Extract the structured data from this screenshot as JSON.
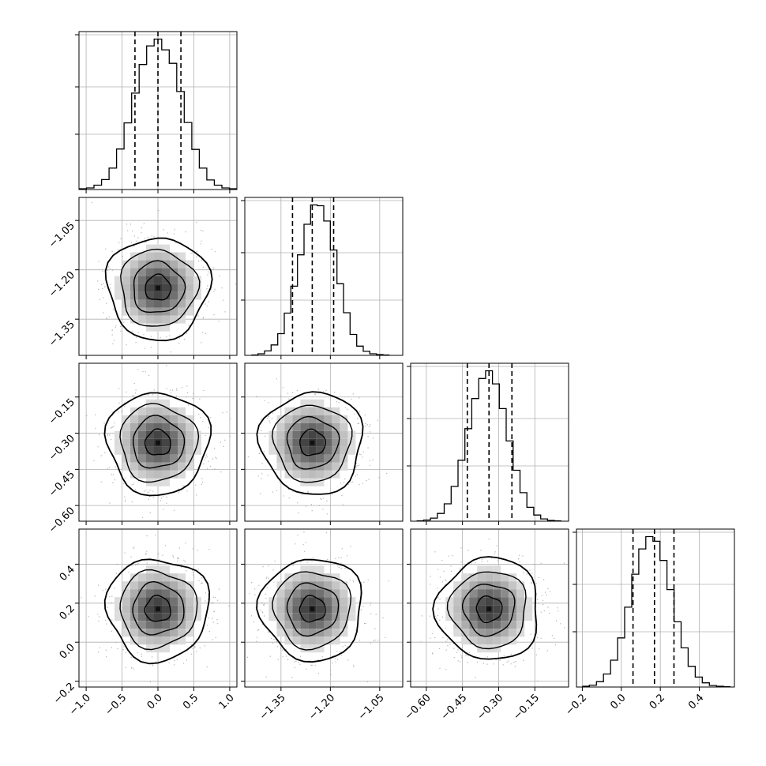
{
  "chart_data": {
    "type": "corner",
    "title": "",
    "parameters": [
      {
        "index": 0,
        "xlim": [
          -1.1,
          1.1
        ],
        "ticks": [
          -1.0,
          -0.5,
          0.0,
          0.5,
          1.0
        ],
        "tick_labels": [
          "−1.0",
          "−0.5",
          "0.0",
          "0.5",
          "1.0"
        ],
        "quantiles": [
          -0.32,
          0.0,
          0.32
        ]
      },
      {
        "index": 1,
        "xlim": [
          -1.46,
          -0.98
        ],
        "ticks": [
          -1.35,
          -1.2,
          -1.05
        ],
        "tick_labels": [
          "−1.35",
          "−1.20",
          "−1.05"
        ],
        "quantiles": [
          -1.315,
          -1.255,
          -1.19
        ]
      },
      {
        "index": 2,
        "xlim": [
          -0.665,
          -0.01
        ],
        "ticks": [
          -0.6,
          -0.45,
          -0.3,
          -0.15
        ],
        "tick_labels": [
          "−0.60",
          "−0.45",
          "−0.30",
          "−0.15"
        ],
        "quantiles": [
          -0.43,
          -0.34,
          -0.245
        ]
      },
      {
        "index": 3,
        "xlim": [
          -0.23,
          0.58
        ],
        "ticks": [
          -0.2,
          0.0,
          0.2,
          0.4
        ],
        "tick_labels": [
          "−0.2",
          "0.0",
          "0.2",
          "0.4"
        ],
        "quantiles": [
          0.06,
          0.17,
          0.27
        ]
      }
    ],
    "histograms": [
      {
        "param": 0,
        "bins": [
          -1.1,
          1.1
        ],
        "counts": [
          2,
          4,
          11,
          25,
          54,
          102,
          168,
          243,
          315,
          362,
          379,
          352,
          318,
          247,
          169,
          101,
          54,
          24,
          11,
          4,
          2
        ]
      },
      {
        "param": 1,
        "bins": [
          -1.44,
          -1.02
        ],
        "counts": [
          1,
          4,
          11,
          26,
          54,
          105,
          172,
          250,
          326,
          374,
          372,
          334,
          262,
          178,
          106,
          52,
          23,
          10,
          4,
          2,
          1
        ]
      },
      {
        "param": 2,
        "bins": [
          -0.64,
          -0.04
        ],
        "counts": [
          1,
          3,
          8,
          20,
          45,
          90,
          158,
          240,
          318,
          370,
          390,
          356,
          292,
          208,
          132,
          74,
          36,
          16,
          6,
          2,
          1
        ]
      },
      {
        "param": 3,
        "bins": [
          -0.2,
          0.56
        ],
        "counts": [
          2,
          5,
          14,
          34,
          70,
          128,
          208,
          294,
          360,
          392,
          380,
          330,
          254,
          170,
          102,
          54,
          26,
          11,
          4,
          2,
          1
        ]
      }
    ],
    "joint_centers": [
      {
        "x": 0,
        "y": 1,
        "center": [
          0.0,
          -1.255
        ]
      },
      {
        "x": 0,
        "y": 2,
        "center": [
          0.0,
          -0.34
        ]
      },
      {
        "x": 1,
        "y": 2,
        "center": [
          -1.255,
          -0.34
        ]
      },
      {
        "x": 0,
        "y": 3,
        "center": [
          0.0,
          0.17
        ]
      },
      {
        "x": 1,
        "y": 3,
        "center": [
          -1.255,
          0.17
        ]
      },
      {
        "x": 2,
        "y": 3,
        "center": [
          -0.34,
          0.17
        ]
      }
    ],
    "contour_levels": [
      0.5,
      1.0,
      1.5,
      2.0
    ],
    "grid": true,
    "colors": {
      "ink": "#000000",
      "grid": "#b0b0b0",
      "points": "#9a9a9a",
      "density": "#404040"
    }
  }
}
